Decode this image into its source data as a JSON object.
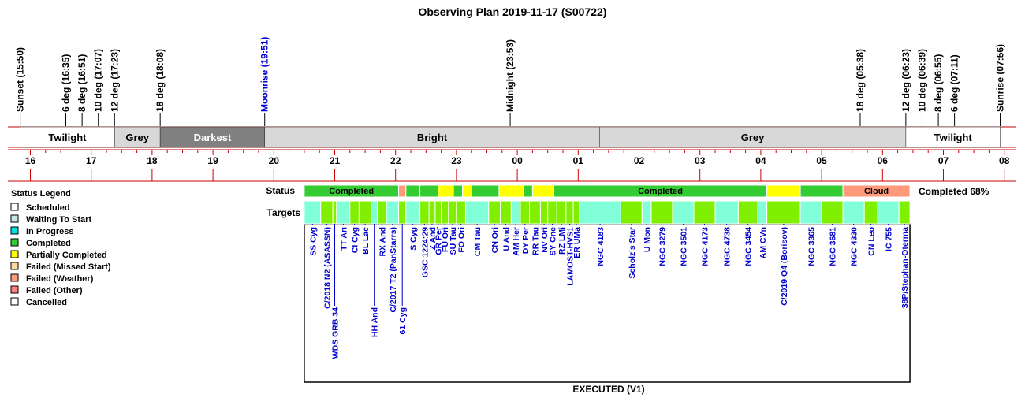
{
  "chart_data": {
    "type": "timeline",
    "title": "Observing Plan 2019-11-17 (S00722)",
    "footer": "EXECUTED (V1)",
    "completion_text": "Completed 68%",
    "axis": {
      "start_hour": 15.5,
      "end_hour": 32.1,
      "hour_labels": [
        "16",
        "17",
        "18",
        "19",
        "20",
        "21",
        "22",
        "23",
        "00",
        "01",
        "02",
        "03",
        "04",
        "05",
        "06",
        "07",
        "08"
      ]
    },
    "events": [
      {
        "label": "Sunset (15:50)",
        "hour": 15.833,
        "color": "#000000"
      },
      {
        "label": "6 deg (16:35)",
        "hour": 16.583,
        "color": "#000000"
      },
      {
        "label": "8 deg (16:51)",
        "hour": 16.85,
        "color": "#000000"
      },
      {
        "label": "10 deg (17:07)",
        "hour": 17.117,
        "color": "#000000"
      },
      {
        "label": "12 deg (17:23)",
        "hour": 17.383,
        "color": "#000000"
      },
      {
        "label": "18 deg (18:08)",
        "hour": 18.133,
        "color": "#000000"
      },
      {
        "label": "Moonrise (19:51)",
        "hour": 19.85,
        "color": "#0000cc"
      },
      {
        "label": "Midnight (23:53)",
        "hour": 23.883,
        "color": "#000000"
      },
      {
        "label": "18 deg (05:38)",
        "hour": 29.633,
        "color": "#000000"
      },
      {
        "label": "12 deg (06:23)",
        "hour": 30.383,
        "color": "#000000"
      },
      {
        "label": "10 deg (06:39)",
        "hour": 30.65,
        "color": "#000000"
      },
      {
        "label": "8 deg (06:55)",
        "hour": 30.917,
        "color": "#000000"
      },
      {
        "label": "6 deg (07:11)",
        "hour": 31.183,
        "color": "#000000"
      },
      {
        "label": "Sunrise (07:56)",
        "hour": 31.933,
        "color": "#000000"
      }
    ],
    "sky_bands": [
      {
        "label": "Twilight",
        "start": 15.833,
        "end": 17.383,
        "fill": "#ffffff",
        "text_color": "#000000"
      },
      {
        "label": "Grey",
        "start": 17.383,
        "end": 18.133,
        "fill": "#d8d8d8",
        "text_color": "#000000"
      },
      {
        "label": "Darkest",
        "start": 18.133,
        "end": 19.85,
        "fill": "#808080",
        "text_color": "#ffffff"
      },
      {
        "label": "Bright",
        "start": 19.85,
        "end": 25.35,
        "fill": "#d8d8d8",
        "text_color": "#000000"
      },
      {
        "label": "Grey",
        "start": 25.35,
        "end": 30.383,
        "fill": "#d8d8d8",
        "text_color": "#000000"
      },
      {
        "label": "Twilight",
        "start": 30.383,
        "end": 31.933,
        "fill": "#ffffff",
        "text_color": "#000000"
      }
    ],
    "status_label": "Status",
    "targets_label": "Targets",
    "legend_title": "Status Legend",
    "legend": [
      {
        "label": "Scheduled",
        "color": "#ffffff"
      },
      {
        "label": "Waiting To Start",
        "color": "#c8e8e8"
      },
      {
        "label": "In Progress",
        "color": "#00e0e0"
      },
      {
        "label": "Completed",
        "color": "#33cc33"
      },
      {
        "label": "Partially Completed",
        "color": "#ffff00"
      },
      {
        "label": "Failed (Missed Start)",
        "color": "#ffd8a0"
      },
      {
        "label": "Failed (Weather)",
        "color": "#ff9a7a"
      },
      {
        "label": "Failed (Other)",
        "color": "#ff8080"
      },
      {
        "label": "Cancelled",
        "color": "#ffffff"
      }
    ],
    "status_segments": [
      {
        "start": 20.5,
        "end": 22.05,
        "status": "Completed",
        "label": "Completed"
      },
      {
        "start": 22.05,
        "end": 22.17,
        "status": "Failed (Weather)",
        "label": ""
      },
      {
        "start": 22.17,
        "end": 22.4,
        "status": "Completed",
        "label": ""
      },
      {
        "start": 22.4,
        "end": 22.7,
        "status": "Completed",
        "label": ""
      },
      {
        "start": 22.7,
        "end": 22.95,
        "status": "Partially Completed",
        "label": ""
      },
      {
        "start": 22.95,
        "end": 23.1,
        "status": "Completed",
        "label": ""
      },
      {
        "start": 23.1,
        "end": 23.25,
        "status": "Partially Completed",
        "label": ""
      },
      {
        "start": 23.25,
        "end": 23.7,
        "status": "Completed",
        "label": ""
      },
      {
        "start": 23.7,
        "end": 24.1,
        "status": "Partially Completed",
        "label": ""
      },
      {
        "start": 24.1,
        "end": 24.25,
        "status": "Completed",
        "label": ""
      },
      {
        "start": 24.25,
        "end": 24.6,
        "status": "Partially Completed",
        "label": ""
      },
      {
        "start": 24.6,
        "end": 28.1,
        "status": "Completed",
        "label": "Completed"
      },
      {
        "start": 28.1,
        "end": 28.65,
        "status": "Partially Completed",
        "label": ""
      },
      {
        "start": 28.65,
        "end": 29.35,
        "status": "Completed",
        "label": ""
      },
      {
        "start": 29.35,
        "end": 30.45,
        "status": "Failed (Weather)",
        "label": "Cloud"
      }
    ],
    "targets": [
      {
        "name": "SS Cyg",
        "start": 20.5,
        "end": 20.77,
        "status": "Waiting To Start",
        "row": 0
      },
      {
        "name": "C/2018 N2 (ASASSN)",
        "start": 20.77,
        "end": 20.97,
        "status": "Completed",
        "row": 0
      },
      {
        "name": "WDS GRB 34",
        "start": 20.97,
        "end": 21.03,
        "status": "Completed",
        "row": 1
      },
      {
        "name": "TT Ari",
        "start": 21.03,
        "end": 21.25,
        "status": "Waiting To Start",
        "row": 0
      },
      {
        "name": "CI Cyg",
        "start": 21.25,
        "end": 21.4,
        "status": "Completed",
        "row": 0
      },
      {
        "name": "BL Lac",
        "start": 21.4,
        "end": 21.6,
        "status": "Completed",
        "row": 0
      },
      {
        "name": "HH And",
        "start": 21.6,
        "end": 21.7,
        "status": "Waiting To Start",
        "row": 1
      },
      {
        "name": "RX And",
        "start": 21.7,
        "end": 21.85,
        "status": "Completed",
        "row": 0
      },
      {
        "name": "C/2017 T2 (PanStarrs)",
        "start": 21.85,
        "end": 22.05,
        "status": "Waiting To Start",
        "row": 0
      },
      {
        "name": "61 Cyg",
        "start": 22.05,
        "end": 22.17,
        "status": "Completed",
        "row": 1
      },
      {
        "name": "S Cyg",
        "start": 22.17,
        "end": 22.4,
        "status": "Waiting To Start",
        "row": 0
      },
      {
        "name": "GSC 1224:29",
        "start": 22.4,
        "end": 22.55,
        "status": "Completed",
        "row": 0
      },
      {
        "name": "Z And",
        "start": 22.55,
        "end": 22.65,
        "status": "Completed",
        "row": 0
      },
      {
        "name": "GR Per",
        "start": 22.65,
        "end": 22.75,
        "status": "Completed",
        "row": 0
      },
      {
        "name": "FU Ori",
        "start": 22.75,
        "end": 22.87,
        "status": "Completed",
        "row": 0
      },
      {
        "name": "SU Tau",
        "start": 22.87,
        "end": 23.0,
        "status": "Completed",
        "row": 0
      },
      {
        "name": "FO Ori",
        "start": 23.0,
        "end": 23.15,
        "status": "Completed",
        "row": 0
      },
      {
        "name": "CM Tau",
        "start": 23.15,
        "end": 23.53,
        "status": "Waiting To Start",
        "row": 0
      },
      {
        "name": "CN Ori",
        "start": 23.53,
        "end": 23.72,
        "status": "Completed",
        "row": 0
      },
      {
        "name": "U And",
        "start": 23.72,
        "end": 23.9,
        "status": "Completed",
        "row": 0
      },
      {
        "name": "AM Her",
        "start": 23.9,
        "end": 24.05,
        "status": "Waiting To Start",
        "row": 0
      },
      {
        "name": "DY Per",
        "start": 24.05,
        "end": 24.2,
        "status": "Completed",
        "row": 0
      },
      {
        "name": "RR Tau",
        "start": 24.2,
        "end": 24.38,
        "status": "Completed",
        "row": 0
      },
      {
        "name": "NV Ori",
        "start": 24.38,
        "end": 24.5,
        "status": "Completed",
        "row": 0
      },
      {
        "name": "SY Cnc",
        "start": 24.5,
        "end": 24.65,
        "status": "Completed",
        "row": 0
      },
      {
        "name": "RZ LMi",
        "start": 24.65,
        "end": 24.8,
        "status": "Completed",
        "row": 0
      },
      {
        "name": "LAMOST-HVS1",
        "start": 24.8,
        "end": 24.92,
        "status": "Completed",
        "row": 0
      },
      {
        "name": "ER UMa",
        "start": 24.92,
        "end": 25.02,
        "status": "Completed",
        "row": 0
      },
      {
        "name": "NGC 4183",
        "start": 25.02,
        "end": 25.7,
        "status": "Waiting To Start",
        "row": 0
      },
      {
        "name": "Scholz's Star",
        "start": 25.7,
        "end": 26.05,
        "status": "Completed",
        "row": 0
      },
      {
        "name": "U Mon",
        "start": 26.05,
        "end": 26.2,
        "status": "Waiting To Start",
        "row": 0
      },
      {
        "name": "NGC 3279",
        "start": 26.2,
        "end": 26.55,
        "status": "Completed",
        "row": 0
      },
      {
        "name": "NGC 3501",
        "start": 26.55,
        "end": 26.9,
        "status": "Waiting To Start",
        "row": 0
      },
      {
        "name": "NGC 4173",
        "start": 26.9,
        "end": 27.25,
        "status": "Completed",
        "row": 0
      },
      {
        "name": "NGC 4738",
        "start": 27.25,
        "end": 27.63,
        "status": "Waiting To Start",
        "row": 0
      },
      {
        "name": "NGC 3454",
        "start": 27.63,
        "end": 27.95,
        "status": "Completed",
        "row": 0
      },
      {
        "name": "AM CVn",
        "start": 27.95,
        "end": 28.1,
        "status": "Waiting To Start",
        "row": 0
      },
      {
        "name": "C/2019 Q4 (Borisov)",
        "start": 28.1,
        "end": 28.65,
        "status": "Completed",
        "row": 0
      },
      {
        "name": "NGC 3365",
        "start": 28.65,
        "end": 29.0,
        "status": "Waiting To Start",
        "row": 0
      },
      {
        "name": "NGC 3681",
        "start": 29.0,
        "end": 29.35,
        "status": "Completed",
        "row": 0
      },
      {
        "name": "NGC 4330",
        "start": 29.35,
        "end": 29.7,
        "status": "Waiting To Start",
        "row": 0
      },
      {
        "name": "CN Leo",
        "start": 29.7,
        "end": 29.92,
        "status": "Completed",
        "row": 0
      },
      {
        "name": "IC 755",
        "start": 29.92,
        "end": 30.27,
        "status": "Waiting To Start",
        "row": 0
      },
      {
        "name": "38P/Stephan-Oterma",
        "start": 30.27,
        "end": 30.45,
        "status": "Completed",
        "row": 0
      }
    ]
  }
}
